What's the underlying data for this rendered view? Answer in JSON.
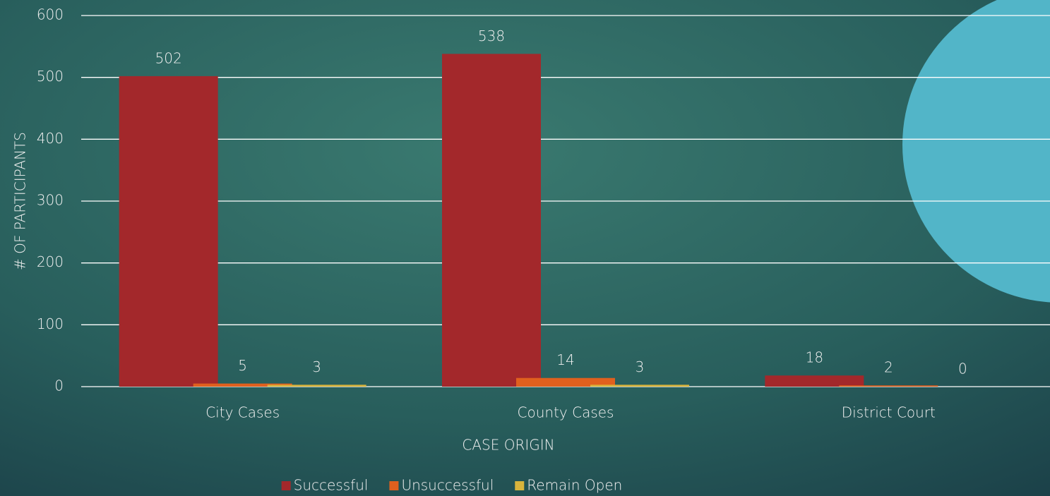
{
  "chart_data": {
    "type": "bar",
    "x_label": "CASE ORIGIN",
    "y_label": "# OF PARTICIPANTS",
    "categories": [
      "City Cases",
      "County Cases",
      "District Court"
    ],
    "series": [
      {
        "name": "Successful",
        "color": "#a3282b",
        "values": [
          502,
          538,
          18
        ]
      },
      {
        "name": "Unsuccessful",
        "color": "#e0601e",
        "values": [
          5,
          14,
          2
        ]
      },
      {
        "name": "Remain Open",
        "color": "#d9b43c",
        "values": [
          3,
          3,
          0
        ]
      }
    ],
    "ylim": [
      0,
      600
    ],
    "yticks": [
      0,
      100,
      200,
      300,
      400,
      500,
      600
    ],
    "grid": true,
    "legend": "bottom"
  }
}
